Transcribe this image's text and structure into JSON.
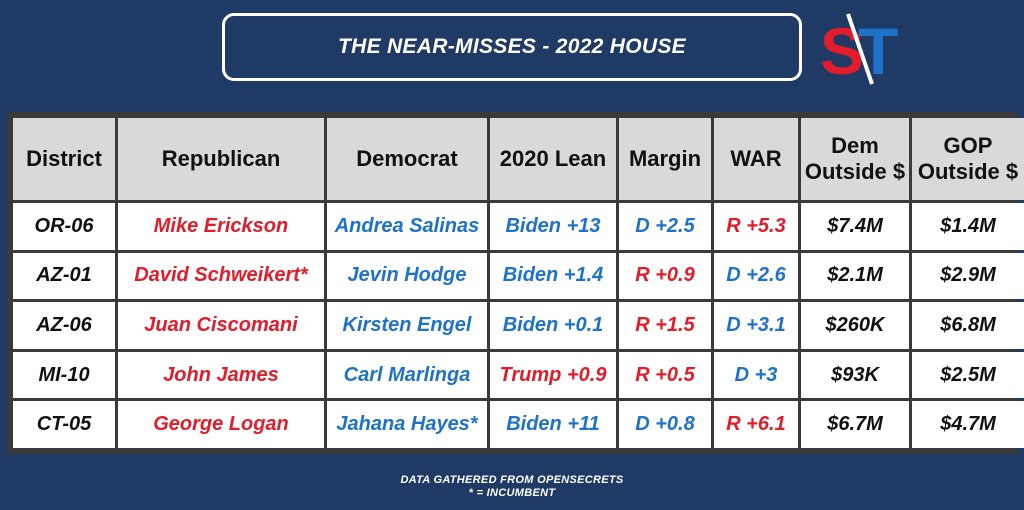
{
  "header": {
    "title": "THE NEAR-MISSES - 2022 HOUSE"
  },
  "logo": {
    "left": "S",
    "right": "T",
    "icon": "st-logo"
  },
  "table": {
    "columns": [
      "District",
      "Republican",
      "Democrat",
      "2020 Lean",
      "Margin",
      "WAR",
      "Dem\nOutside $",
      "GOP\nOutside $"
    ],
    "column_lines": [
      [
        "District"
      ],
      [
        "Republican"
      ],
      [
        "Democrat"
      ],
      [
        "2020 Lean"
      ],
      [
        "Margin"
      ],
      [
        "WAR"
      ],
      [
        "Dem",
        "Outside $"
      ],
      [
        "GOP",
        "Outside $"
      ]
    ],
    "rows": [
      {
        "district": "OR-06",
        "republican": "Mike Erickson",
        "democrat": "Andrea Salinas",
        "lean": "Biden +13",
        "lean_party": "D",
        "margin": "D +2.5",
        "margin_party": "D",
        "war": "R +5.3",
        "war_party": "R",
        "dem_outside": "$7.4M",
        "gop_outside": "$1.4M"
      },
      {
        "district": "AZ-01",
        "republican": "David Schweikert*",
        "democrat": "Jevin Hodge",
        "lean": "Biden +1.4",
        "lean_party": "D",
        "margin": "R +0.9",
        "margin_party": "R",
        "war": "D +2.6",
        "war_party": "D",
        "dem_outside": "$2.1M",
        "gop_outside": "$2.9M"
      },
      {
        "district": "AZ-06",
        "republican": "Juan Ciscomani",
        "democrat": "Kirsten Engel",
        "lean": "Biden +0.1",
        "lean_party": "D",
        "margin": "R +1.5",
        "margin_party": "R",
        "war": "D +3.1",
        "war_party": "D",
        "dem_outside": "$260K",
        "gop_outside": "$6.8M"
      },
      {
        "district": "MI-10",
        "republican": "John James",
        "democrat": "Carl Marlinga",
        "lean": "Trump +0.9",
        "lean_party": "R",
        "margin": "R +0.5",
        "margin_party": "R",
        "war": "D +3",
        "war_party": "D",
        "dem_outside": "$93K",
        "gop_outside": "$2.5M"
      },
      {
        "district": "CT-05",
        "republican": "George Logan",
        "democrat": "Jahana Hayes*",
        "lean": "Biden +11",
        "lean_party": "D",
        "margin": "D +0.8",
        "margin_party": "D",
        "war": "R +6.1",
        "war_party": "R",
        "dem_outside": "$6.7M",
        "gop_outside": "$4.7M"
      }
    ]
  },
  "footer": {
    "line1": "DATA GATHERED FROM OPENSECRETS",
    "line2": "* = INCUMBENT"
  },
  "colors": {
    "background": "#1f3a64",
    "republican": "#e21c2a",
    "democrat": "#1e73c8",
    "header_cell": "#d9d9d9"
  }
}
